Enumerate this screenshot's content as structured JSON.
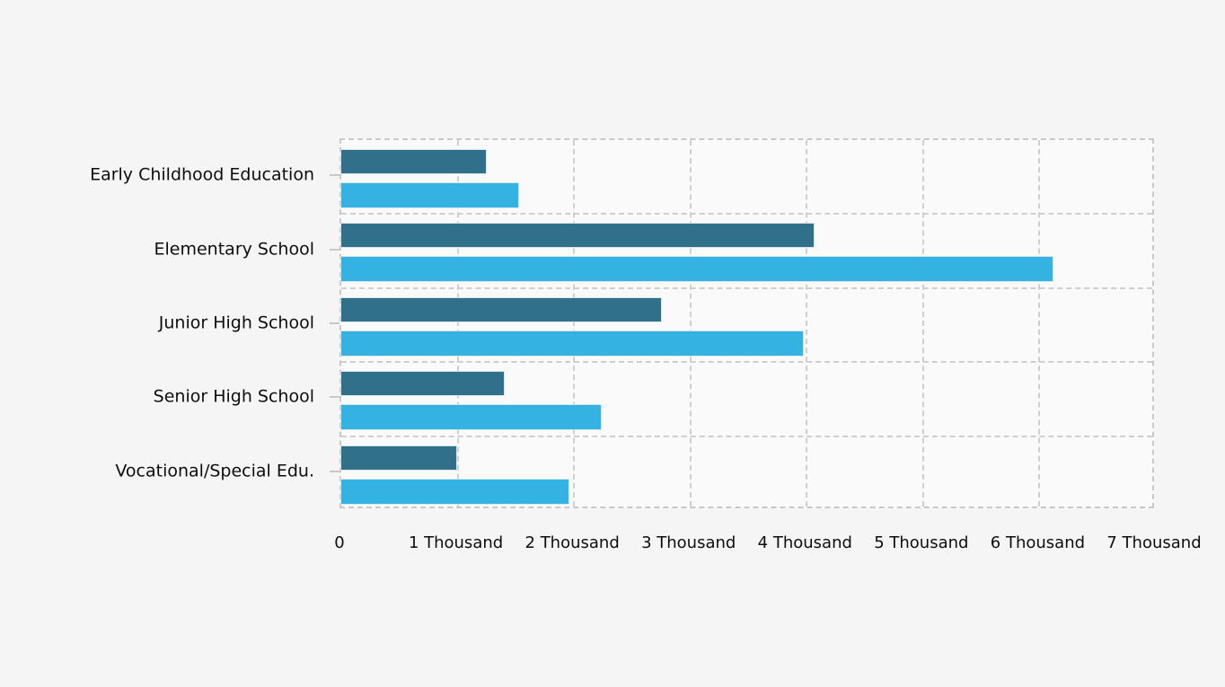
{
  "page": {
    "background_color": "#f5f5f5",
    "plot_background_color": "#fafafa",
    "grid_color": "#cfcfcf",
    "text_color": "#0d0d0d"
  },
  "chart_data": {
    "type": "bar",
    "orientation": "horizontal",
    "title": "",
    "xlabel": "",
    "ylabel": "",
    "categories": [
      "Early Childhood Education",
      "Elementary School",
      "Junior High School",
      "Senior High School",
      "Vocational/Special Edu."
    ],
    "series": [
      {
        "name": "dark-teal-series",
        "color": "#31708a",
        "values": [
          1240,
          4060,
          2750,
          1400,
          990
        ]
      },
      {
        "name": "light-blue-series",
        "color": "#34b3e2",
        "values": [
          1520,
          6110,
          3970,
          2230,
          1950
        ]
      }
    ],
    "xlim": [
      0,
      7000
    ],
    "x_tick_values": [
      0,
      1000,
      2000,
      3000,
      4000,
      5000,
      6000,
      7000
    ],
    "x_tick_labels": [
      "0",
      "1 Thousand",
      "2 Thousand",
      "3 Thousand",
      "4 Thousand",
      "5 Thousand",
      "6 Thousand",
      "7 Thousand"
    ],
    "grid": "dashed",
    "legend_position": "none"
  }
}
